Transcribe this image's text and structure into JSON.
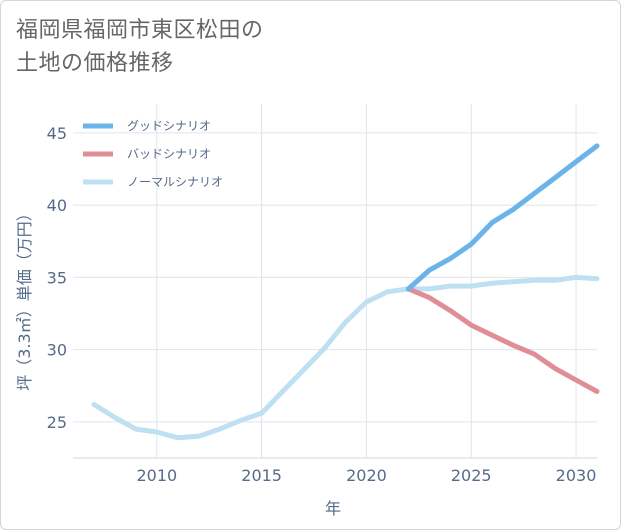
{
  "title_line1": "福岡県福岡市東区松田の",
  "title_line2": "土地の価格推移",
  "chart_data": {
    "type": "line",
    "title": "福岡県福岡市東区松田の土地の価格推移",
    "xlabel": "年",
    "ylabel": "坪（3.3㎡）単価（万円）",
    "xlim": [
      2006,
      2031
    ],
    "ylim": [
      22.5,
      47
    ],
    "xticks": [
      2010,
      2015,
      2020,
      2025,
      2030
    ],
    "yticks": [
      25,
      30,
      35,
      40,
      45
    ],
    "grid": true,
    "legend_position": "top-left",
    "series": [
      {
        "name": "グッドシナリオ",
        "color": "#6ab4ea",
        "x": [
          2022,
          2023,
          2024,
          2025,
          2026,
          2027,
          2028,
          2029,
          2030,
          2031
        ],
        "y": [
          34.2,
          35.5,
          36.3,
          37.3,
          38.8,
          39.7,
          40.8,
          41.9,
          43.0,
          44.1
        ]
      },
      {
        "name": "バッドシナリオ",
        "color": "#e08e96",
        "x": [
          2022,
          2023,
          2024,
          2025,
          2026,
          2027,
          2028,
          2029,
          2030,
          2031
        ],
        "y": [
          34.2,
          33.6,
          32.7,
          31.7,
          31.0,
          30.3,
          29.7,
          28.7,
          27.9,
          27.1
        ]
      },
      {
        "name": "ノーマルシナリオ",
        "color": "#bfe0f2",
        "x": [
          2007,
          2008,
          2009,
          2010,
          2011,
          2012,
          2013,
          2014,
          2015,
          2016,
          2017,
          2018,
          2019,
          2020,
          2021,
          2022,
          2023,
          2024,
          2025,
          2026,
          2027,
          2028,
          2029,
          2030,
          2031
        ],
        "y": [
          26.2,
          25.3,
          24.5,
          24.3,
          23.9,
          24.0,
          24.5,
          25.1,
          25.6,
          27.1,
          28.6,
          30.1,
          31.9,
          33.3,
          34.0,
          34.2,
          34.2,
          34.4,
          34.4,
          34.6,
          34.7,
          34.8,
          34.8,
          35.0,
          34.9
        ]
      }
    ]
  }
}
